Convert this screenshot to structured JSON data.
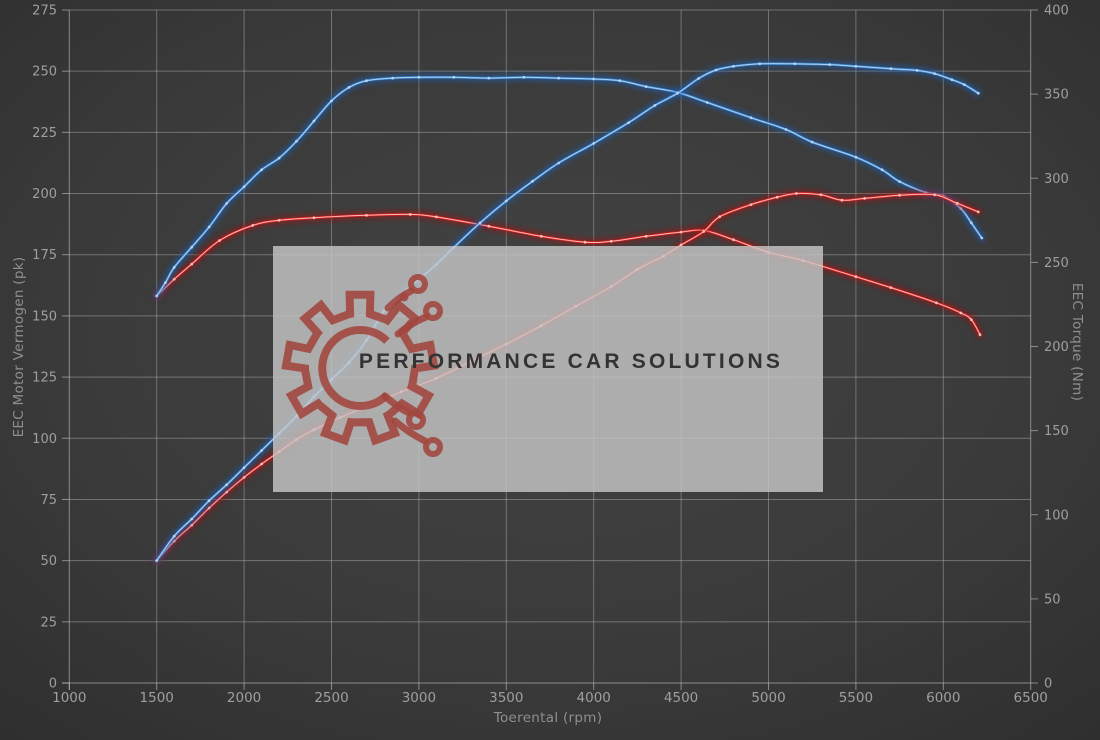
{
  "colors": {
    "background_center": "#434343",
    "background_edge": "#2c2c2c",
    "grid": "rgba(208,208,208,0.38)",
    "axis_line": "rgba(208,208,208,0.55)",
    "tick_text": "#9f9f9f",
    "axis_title_text": "#8f8f8f",
    "blue_main": "#3c87d0",
    "blue_glow": "#1a5fb4",
    "blue_core": "#bcd9f5",
    "red_main": "#dd2222",
    "red_glow": "#a50f0f",
    "red_core": "#ffc9c4",
    "watermark_bg": "rgba(198,198,198,0.82)",
    "watermark_text_color": "#333333",
    "logo_color": "#a2463e"
  },
  "watermark": {
    "text": "PERFORMANCE CAR SOLUTIONS",
    "logo_icon": "gear-circuit-icon"
  },
  "chart_data": {
    "type": "line",
    "title": "",
    "xlabel": "Toerental (rpm)",
    "ylabel_left": "EEC Motor Vermogen (pk)",
    "ylabel_right": "EEC Torque (Nm)",
    "x_range": [
      1000,
      6500
    ],
    "x_tick_step": 500,
    "y_left_range": [
      0,
      275
    ],
    "y_left_tick_step": 25,
    "y_right_range": [
      0,
      400
    ],
    "y_right_tick_step": 50,
    "grid": true,
    "legend": "none",
    "series": [
      {
        "name": "red-torque",
        "axis": "right",
        "unit": "Nm",
        "color_key": "red",
        "points": [
          [
            1500,
            230
          ],
          [
            1600,
            240
          ],
          [
            1700,
            249
          ],
          [
            1860,
            263
          ],
          [
            2050,
            272
          ],
          [
            2200,
            275
          ],
          [
            2400,
            276.5
          ],
          [
            2700,
            278
          ],
          [
            2950,
            278.5
          ],
          [
            3100,
            277
          ],
          [
            3400,
            271.5
          ],
          [
            3700,
            265.5
          ],
          [
            3950,
            262
          ],
          [
            4100,
            262.5
          ],
          [
            4300,
            265.5
          ],
          [
            4500,
            268
          ],
          [
            4630,
            269
          ],
          [
            4800,
            263.5
          ],
          [
            5000,
            256
          ],
          [
            5200,
            251
          ],
          [
            5500,
            241.5
          ],
          [
            5700,
            235
          ],
          [
            5960,
            226
          ],
          [
            6100,
            220
          ],
          [
            6160,
            216
          ],
          [
            6210,
            207
          ]
        ]
      },
      {
        "name": "blue-torque",
        "axis": "right",
        "unit": "Nm",
        "color_key": "blue",
        "points": [
          [
            1500,
            230
          ],
          [
            1550,
            238
          ],
          [
            1600,
            247
          ],
          [
            1700,
            259
          ],
          [
            1800,
            271
          ],
          [
            1900,
            285
          ],
          [
            2000,
            295
          ],
          [
            2100,
            305
          ],
          [
            2200,
            312
          ],
          [
            2300,
            322
          ],
          [
            2400,
            334
          ],
          [
            2500,
            346
          ],
          [
            2600,
            354
          ],
          [
            2700,
            358
          ],
          [
            2850,
            359.5
          ],
          [
            3000,
            360
          ],
          [
            3200,
            360
          ],
          [
            3400,
            359.5
          ],
          [
            3600,
            360
          ],
          [
            3800,
            359.5
          ],
          [
            4000,
            359
          ],
          [
            4150,
            358
          ],
          [
            4300,
            354.5
          ],
          [
            4480,
            351
          ],
          [
            4650,
            345
          ],
          [
            4900,
            336
          ],
          [
            5100,
            329
          ],
          [
            5250,
            321.5
          ],
          [
            5500,
            312.5
          ],
          [
            5650,
            305
          ],
          [
            5750,
            298
          ],
          [
            5900,
            291.5
          ],
          [
            6000,
            289.5
          ],
          [
            6100,
            282
          ],
          [
            6160,
            273.5
          ],
          [
            6220,
            264.5
          ]
        ]
      },
      {
        "name": "red-power",
        "axis": "left",
        "unit": "pk",
        "color_key": "red",
        "points": [
          [
            1500,
            50
          ],
          [
            1600,
            58
          ],
          [
            1700,
            64.5
          ],
          [
            1800,
            71.5
          ],
          [
            1900,
            78
          ],
          [
            2000,
            84
          ],
          [
            2100,
            89.5
          ],
          [
            2200,
            94.5
          ],
          [
            2300,
            99.5
          ],
          [
            2400,
            103.5
          ],
          [
            2550,
            108.5
          ],
          [
            2700,
            113
          ],
          [
            2900,
            119
          ],
          [
            3100,
            124.5
          ],
          [
            3300,
            131.5
          ],
          [
            3500,
            138.5
          ],
          [
            3700,
            146
          ],
          [
            3900,
            154
          ],
          [
            4100,
            162
          ],
          [
            4250,
            169
          ],
          [
            4400,
            174.5
          ],
          [
            4500,
            179
          ],
          [
            4630,
            184.5
          ],
          [
            4720,
            190.5
          ],
          [
            4900,
            195.5
          ],
          [
            5050,
            198.5
          ],
          [
            5160,
            200
          ],
          [
            5300,
            199.5
          ],
          [
            5420,
            197.3
          ],
          [
            5550,
            198
          ],
          [
            5750,
            199.3
          ],
          [
            5950,
            199.5
          ],
          [
            6080,
            196
          ],
          [
            6200,
            192.5
          ]
        ]
      },
      {
        "name": "blue-power",
        "axis": "left",
        "unit": "pk",
        "color_key": "blue",
        "points": [
          [
            1500,
            50
          ],
          [
            1600,
            60
          ],
          [
            1700,
            67
          ],
          [
            1800,
            74.5
          ],
          [
            1900,
            81
          ],
          [
            2000,
            88
          ],
          [
            2100,
            95
          ],
          [
            2200,
            102
          ],
          [
            2300,
            109
          ],
          [
            2400,
            117
          ],
          [
            2500,
            124
          ],
          [
            2600,
            131
          ],
          [
            2700,
            140
          ],
          [
            2800,
            152
          ],
          [
            2900,
            159
          ],
          [
            3000,
            165
          ],
          [
            3100,
            171
          ],
          [
            3200,
            178
          ],
          [
            3350,
            188
          ],
          [
            3500,
            197
          ],
          [
            3650,
            205
          ],
          [
            3800,
            212.5
          ],
          [
            4000,
            220.5
          ],
          [
            4200,
            229
          ],
          [
            4350,
            236
          ],
          [
            4480,
            241
          ],
          [
            4600,
            247
          ],
          [
            4700,
            250.5
          ],
          [
            4800,
            252
          ],
          [
            4950,
            253
          ],
          [
            5150,
            253
          ],
          [
            5350,
            252.7
          ],
          [
            5500,
            252
          ],
          [
            5700,
            251
          ],
          [
            5850,
            250.3
          ],
          [
            5950,
            249
          ],
          [
            6050,
            246.5
          ],
          [
            6120,
            244.5
          ],
          [
            6200,
            241
          ]
        ]
      }
    ]
  }
}
